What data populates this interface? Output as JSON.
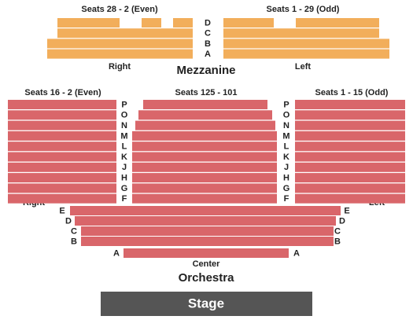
{
  "mezzanine": {
    "title": "Mezzanine",
    "sections": [
      {
        "heading": "Seats 28 - 2 (Even)",
        "label": "Right"
      },
      {
        "heading": "Seats 1 - 29 (Odd)",
        "label": "Left"
      }
    ],
    "rows": [
      "D",
      "C",
      "B",
      "A"
    ]
  },
  "orchestra": {
    "title": "Orchestra",
    "sections": [
      {
        "heading": "Seats 16 - 2 (Even)",
        "label": "Right"
      },
      {
        "heading": "Seats 125 - 101",
        "label": "Center"
      },
      {
        "heading": "Seats 1 - 15 (Odd)",
        "label": "Left"
      }
    ],
    "upper_rows": [
      "P",
      "O",
      "N",
      "M",
      "L",
      "K",
      "J",
      "H",
      "G",
      "F"
    ],
    "lower_rows": [
      "E",
      "D",
      "C",
      "B",
      "A"
    ]
  },
  "stage": "Stage"
}
